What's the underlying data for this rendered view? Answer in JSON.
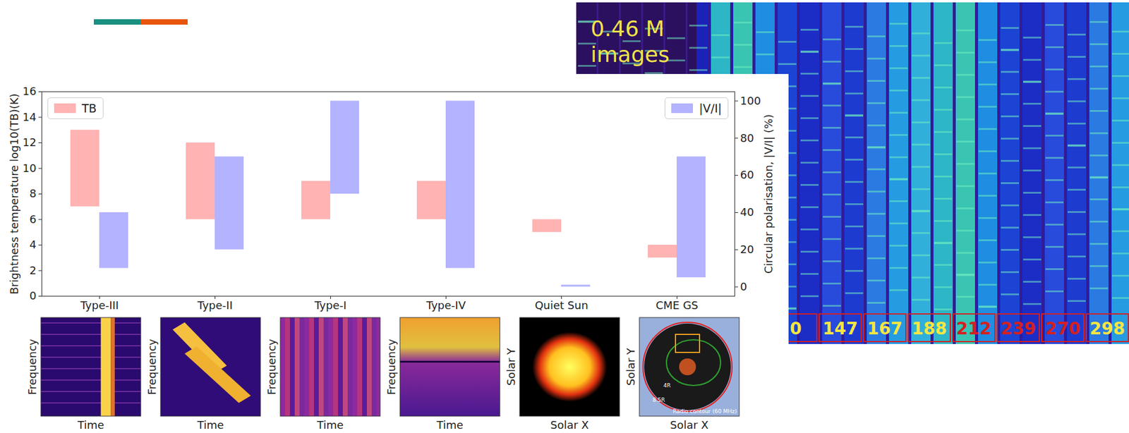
{
  "chart_data": {
    "type": "floating_bar",
    "categories": [
      "Type-III",
      "Type-II",
      "Type-I",
      "Type-IV",
      "Quiet Sun",
      "CME GS"
    ],
    "series": [
      {
        "name": "TB",
        "color": "#ffb3b3",
        "legend": "upper left",
        "values": [
          [
            7,
            13
          ],
          [
            6,
            12
          ],
          [
            6,
            9
          ],
          [
            6,
            9
          ],
          [
            5,
            6
          ],
          [
            3,
            4
          ]
        ]
      },
      {
        "name": "|V/I|",
        "color": "#b3b3ff",
        "axis": "y2",
        "legend": "upper right",
        "values": [
          [
            10,
            40
          ],
          [
            20,
            70
          ],
          [
            50,
            100
          ],
          [
            10,
            100
          ],
          [
            0,
            1
          ],
          [
            5,
            70
          ]
        ]
      }
    ],
    "ylabel": "Brightness temperature log10(TB)(K)",
    "y2label": "Circular polarisation, |V/I| (%)",
    "ylim": [
      0,
      16
    ],
    "yticks": [
      0,
      2,
      4,
      6,
      8,
      10,
      12,
      14,
      16
    ],
    "y2lim": [
      -5,
      105
    ],
    "y2ticks": [
      0,
      20,
      40,
      60,
      80,
      100
    ],
    "thumbnails": [
      {
        "xlabel": "Time",
        "ylabel": "Frequency"
      },
      {
        "xlabel": "Time",
        "ylabel": "Frequency"
      },
      {
        "xlabel": "Time",
        "ylabel": "Frequency"
      },
      {
        "xlabel": "Time",
        "ylabel": "Frequency"
      },
      {
        "xlabel": "Solar X",
        "ylabel": "Solar Y"
      },
      {
        "xlabel": "Solar X",
        "ylabel": "Solar Y",
        "annotations": [
          "4R",
          "8.5R",
          "Radio contour (60 MHz)"
        ]
      }
    ]
  },
  "image": {
    "caption": "0.46 M images",
    "labels": [
      "0",
      "147",
      "167",
      "188",
      "212",
      "239",
      "270",
      "298"
    ],
    "colors": [
      "#f5e642",
      "#f5e642",
      "#f5e642",
      "#f5e642",
      "#d42020",
      "#d42020",
      "#d42020",
      "#f5e642"
    ]
  }
}
